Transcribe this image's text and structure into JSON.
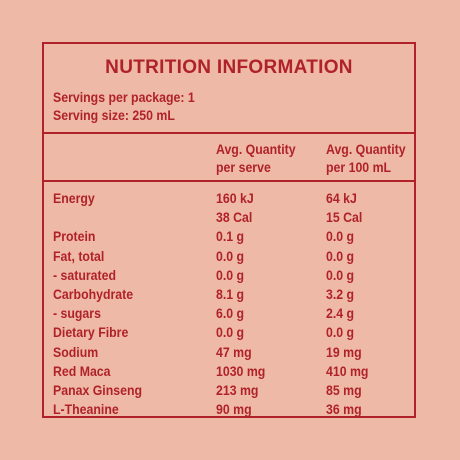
{
  "title": "NUTRITION INFORMATION",
  "servings_per_package": "Servings per package: 1",
  "serving_size": "Serving size: 250 mL",
  "columns": {
    "per_serve": [
      "Avg. Quantity",
      "per serve"
    ],
    "per_100ml": [
      "Avg. Quantity",
      "per 100 mL"
    ]
  },
  "rows": [
    {
      "name": "Energy",
      "per_serve": [
        "160 kJ",
        "38 Cal"
      ],
      "per_100ml": [
        "64 kJ",
        "15 Cal"
      ]
    },
    {
      "name": "Protein",
      "per_serve": "0.1 g",
      "per_100ml": "0.0 g"
    },
    {
      "name": "Fat, total",
      "per_serve": "0.0 g",
      "per_100ml": "0.0 g"
    },
    {
      "name": "- saturated",
      "per_serve": "0.0 g",
      "per_100ml": "0.0 g"
    },
    {
      "name": "Carbohydrate",
      "per_serve": "8.1 g",
      "per_100ml": "3.2 g"
    },
    {
      "name": "- sugars",
      "per_serve": "6.0 g",
      "per_100ml": "2.4 g"
    },
    {
      "name": "Dietary Fibre",
      "per_serve": "0.0 g",
      "per_100ml": "0.0 g"
    },
    {
      "name": "Sodium",
      "per_serve": "47 mg",
      "per_100ml": "19 mg"
    },
    {
      "name": "Red Maca",
      "per_serve": "1030 mg",
      "per_100ml": "410 mg"
    },
    {
      "name": "Panax Ginseng",
      "per_serve": "213 mg",
      "per_100ml": "85 mg"
    },
    {
      "name": "L-Theanine",
      "per_serve": "90 mg",
      "per_100ml": "36 mg"
    }
  ],
  "colors": {
    "background": "#efb9a7",
    "text": "#b0222a",
    "border": "#b0222a"
  }
}
